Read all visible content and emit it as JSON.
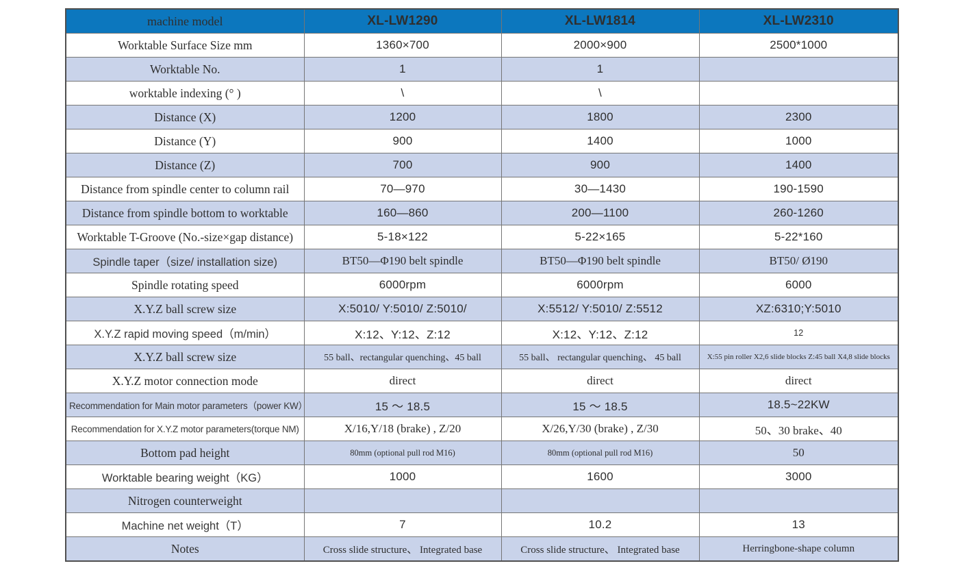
{
  "table": {
    "header": {
      "label": "machine model",
      "columns": [
        "XL-LW1290",
        "XL-LW1814",
        "XL-LW2310"
      ]
    },
    "rows": [
      {
        "label": "Worktable Surface Size mm",
        "values": [
          "1360×700",
          "2000×900",
          "2500*1000"
        ]
      },
      {
        "label": "Worktable No.",
        "values": [
          "1",
          "1",
          ""
        ]
      },
      {
        "label": "worktable indexing (° )",
        "values": [
          "\\",
          "\\",
          ""
        ]
      },
      {
        "label": "Distance (X)",
        "values": [
          "1200",
          "1800",
          "2300"
        ]
      },
      {
        "label": "Distance (Y)",
        "values": [
          "900",
          "1400",
          "1000"
        ]
      },
      {
        "label": "Distance (Z)",
        "values": [
          "700",
          "900",
          "1400"
        ]
      },
      {
        "label": "Distance from spindle center to column rail",
        "values": [
          "70—970",
          "30—1430",
          "190-1590"
        ]
      },
      {
        "label": "Distance from spindle bottom to worktable",
        "values": [
          "160—860",
          "200—1100",
          "260-1260"
        ]
      },
      {
        "label": "Worktable T-Groove (No.-size×gap distance)",
        "values": [
          "5-18×122",
          "5-22×165",
          "5-22*160"
        ]
      },
      {
        "label": "Spindle taper（size/ installation size)",
        "values": [
          "BT50—Φ190 belt spindle",
          "BT50—Φ190 belt spindle",
          "BT50/ Ø190"
        ]
      },
      {
        "label": "Spindle rotating speed",
        "values": [
          "6000rpm",
          "6000rpm",
          "6000"
        ]
      },
      {
        "label": "X.Y.Z ball screw size",
        "values": [
          "X:5010/ Y:5010/ Z:5010/",
          "X:5512/ Y:5010/ Z:5512",
          "XZ:6310;Y:5010"
        ]
      },
      {
        "label": "X.Y.Z rapid moving speed（m/min）",
        "values": [
          "X:12、Y:12、Z:12",
          "X:12、Y:12、Z:12",
          "12"
        ]
      },
      {
        "label": "X.Y.Z ball screw size",
        "values": [
          "55 ball、rectangular quenching、45 ball",
          "55 ball、 rectangular quenching、 45 ball",
          "X:55 pin roller X2,6 slide blocks Z:45 ball X4,8 slide blocks"
        ]
      },
      {
        "label": "X.Y.Z motor connection mode",
        "values": [
          "direct",
          "direct",
          "direct"
        ]
      },
      {
        "label": "Recommendation for Main motor parameters（power KW）",
        "values": [
          "15 ～ 18.5",
          "15 ～ 18.5",
          "18.5~22KW"
        ]
      },
      {
        "label": "Recommendation for X.Y.Z motor parameters(torque NM)",
        "values": [
          "X/16,Y/18 (brake) , Z/20",
          "X/26,Y/30 (brake) , Z/30",
          "50、30 brake、40"
        ]
      },
      {
        "label": "Bottom pad height",
        "values": [
          "80mm (optional pull rod M16)",
          "80mm (optional pull rod M16)",
          "50"
        ]
      },
      {
        "label": "Worktable bearing weight（KG）",
        "values": [
          "1000",
          "1600",
          "3000"
        ]
      },
      {
        "label": "Nitrogen counterweight",
        "values": [
          "",
          "",
          ""
        ]
      },
      {
        "label": "Machine net weight（T）",
        "values": [
          "7",
          "10.2",
          "13"
        ]
      },
      {
        "label": "Notes",
        "values": [
          "Cross slide structure、 Integrated base",
          "Cross slide structure、 Integrated base",
          "Herringbone-shape column"
        ]
      }
    ],
    "colors": {
      "header_bg": "#0c77be",
      "header_text": "#ffffff",
      "stripe_bg": "#c9d3ea",
      "row_bg": "#ffffff",
      "border": "#757575",
      "text": "#2f2f2f"
    }
  }
}
